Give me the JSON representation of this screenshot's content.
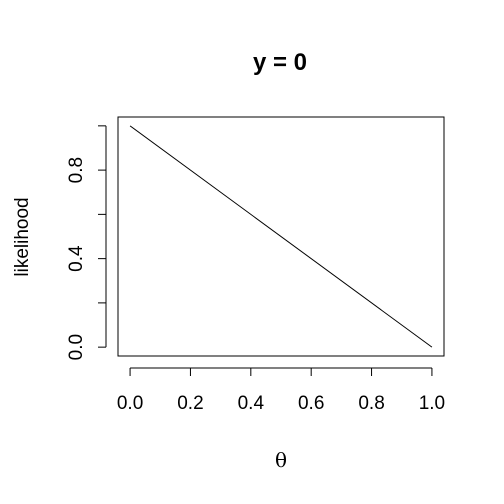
{
  "chart_data": {
    "type": "line",
    "title": "y = 0",
    "xlabel": "θ",
    "ylabel": "likelihood",
    "x": [
      0,
      1
    ],
    "series": [
      {
        "values": [
          1,
          0
        ],
        "color": "#000000"
      }
    ],
    "xlim": [
      -0.04,
      1.04
    ],
    "ylim": [
      -0.04,
      1.04
    ],
    "x_ticks": [
      0.0,
      0.2,
      0.4,
      0.6,
      0.8,
      1.0
    ],
    "x_tick_labels": [
      "0.0",
      "0.2",
      "0.4",
      "0.6",
      "0.8",
      "1.0"
    ],
    "y_ticks": [
      0.0,
      0.2,
      0.4,
      0.6,
      0.8,
      1.0
    ],
    "y_tick_labels": [
      "0.0",
      "0.4",
      "0.8"
    ],
    "y_labeled_ticks": [
      0.0,
      0.4,
      0.8
    ],
    "grid": false,
    "box": true
  }
}
